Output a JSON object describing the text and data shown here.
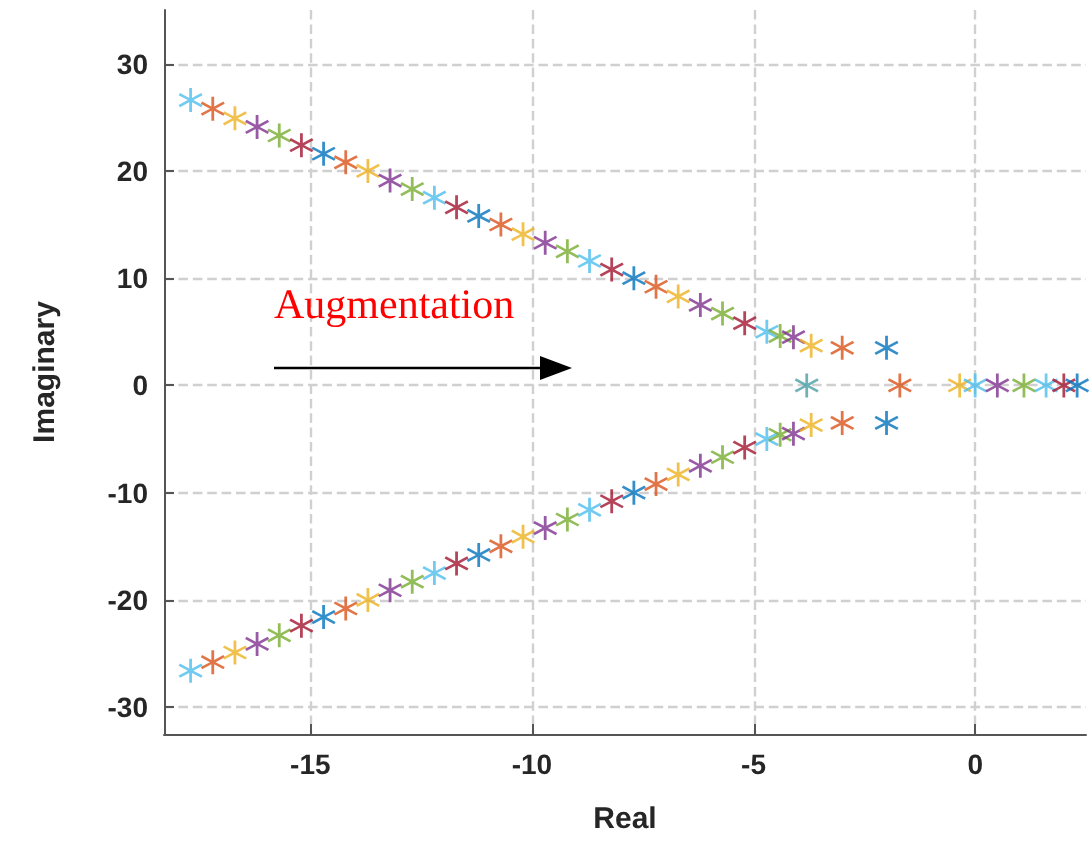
{
  "chart_data": {
    "type": "scatter",
    "xlabel": "Real",
    "ylabel": "Imaginary",
    "annotations": [
      "Augmentation"
    ],
    "xlim": [
      -18.3,
      2.5
    ],
    "xticks": [
      -15,
      -10,
      -5,
      0
    ],
    "ylim": [
      -32.5,
      35
    ],
    "yticks": [
      -30,
      -20,
      -10,
      0,
      10,
      20,
      30
    ],
    "grid": true,
    "marker": "star",
    "x": [
      -17.7,
      -17.2,
      -16.7,
      -16.2,
      -15.7,
      -15.2,
      -14.7,
      -14.2,
      -13.7,
      -13.2,
      -12.7,
      -12.2,
      -11.7,
      -11.2,
      -10.7,
      -10.2,
      -9.7,
      -9.2,
      -8.7,
      -8.2,
      -7.7,
      -7.2,
      -6.7,
      -6.2,
      -5.7,
      -5.2,
      -4.7,
      -4.4,
      -4.1,
      -3.7,
      -3.0,
      -2.0,
      -17.7,
      -17.2,
      -16.7,
      -16.2,
      -15.7,
      -15.2,
      -14.7,
      -14.2,
      -13.7,
      -13.2,
      -12.7,
      -12.2,
      -11.7,
      -11.2,
      -10.7,
      -10.2,
      -9.7,
      -9.2,
      -8.7,
      -8.2,
      -7.7,
      -7.2,
      -6.7,
      -6.2,
      -5.7,
      -5.2,
      -4.7,
      -4.4,
      -4.1,
      -3.7,
      -3.0,
      -2.0,
      -3.8,
      -1.7,
      -0.35,
      0,
      0.5,
      1.1,
      1.6,
      2.0,
      2.3
    ],
    "values": [
      26.6,
      25.8,
      24.9,
      24.1,
      23.3,
      22.4,
      21.6,
      20.8,
      20.0,
      19.1,
      18.3,
      17.5,
      16.6,
      15.8,
      15.0,
      14.1,
      13.3,
      12.5,
      11.6,
      10.8,
      10.0,
      9.2,
      8.3,
      7.5,
      6.7,
      5.8,
      5.0,
      4.6,
      4.5,
      3.7,
      3.5,
      3.5,
      -26.6,
      -25.8,
      -24.9,
      -24.1,
      -23.3,
      -22.4,
      -21.6,
      -20.8,
      -20.0,
      -19.1,
      -18.3,
      -17.5,
      -16.6,
      -15.8,
      -15.0,
      -14.1,
      -13.3,
      -12.5,
      -11.6,
      -10.8,
      -10.0,
      -9.2,
      -8.3,
      -7.5,
      -6.7,
      -5.8,
      -5.0,
      -4.6,
      -4.5,
      -3.7,
      -3.5,
      -3.5,
      0,
      0,
      0,
      0,
      0,
      0,
      0,
      0,
      0
    ],
    "colors": [
      "#4dbeee",
      "#d95319",
      "#edb120",
      "#7e2f8e",
      "#77ac30",
      "#a2142f",
      "#0072bd",
      "#d95319",
      "#edb120",
      "#7e2f8e",
      "#77ac30",
      "#4dbeee",
      "#a2142f",
      "#0072bd",
      "#d95319",
      "#edb120",
      "#7e2f8e",
      "#77ac30",
      "#4dbeee",
      "#a2142f",
      "#0072bd",
      "#d95319",
      "#edb120",
      "#7e2f8e",
      "#77ac30",
      "#a2142f",
      "#4dbeee",
      "#77ac30",
      "#7e2f8e",
      "#edb120",
      "#d95319",
      "#0072bd",
      "#4dbeee",
      "#d95319",
      "#edb120",
      "#7e2f8e",
      "#77ac30",
      "#a2142f",
      "#0072bd",
      "#d95319",
      "#edb120",
      "#7e2f8e",
      "#77ac30",
      "#4dbeee",
      "#a2142f",
      "#0072bd",
      "#d95319",
      "#edb120",
      "#7e2f8e",
      "#77ac30",
      "#4dbeee",
      "#a2142f",
      "#0072bd",
      "#d95319",
      "#edb120",
      "#7e2f8e",
      "#77ac30",
      "#a2142f",
      "#4dbeee",
      "#77ac30",
      "#7e2f8e",
      "#edb120",
      "#d95319",
      "#0072bd",
      "#4a9ea8",
      "#d95319",
      "#edb120",
      "#4dbeee",
      "#7e2f8e",
      "#77ac30",
      "#4dbeee",
      "#a2142f",
      "#0072bd"
    ]
  }
}
